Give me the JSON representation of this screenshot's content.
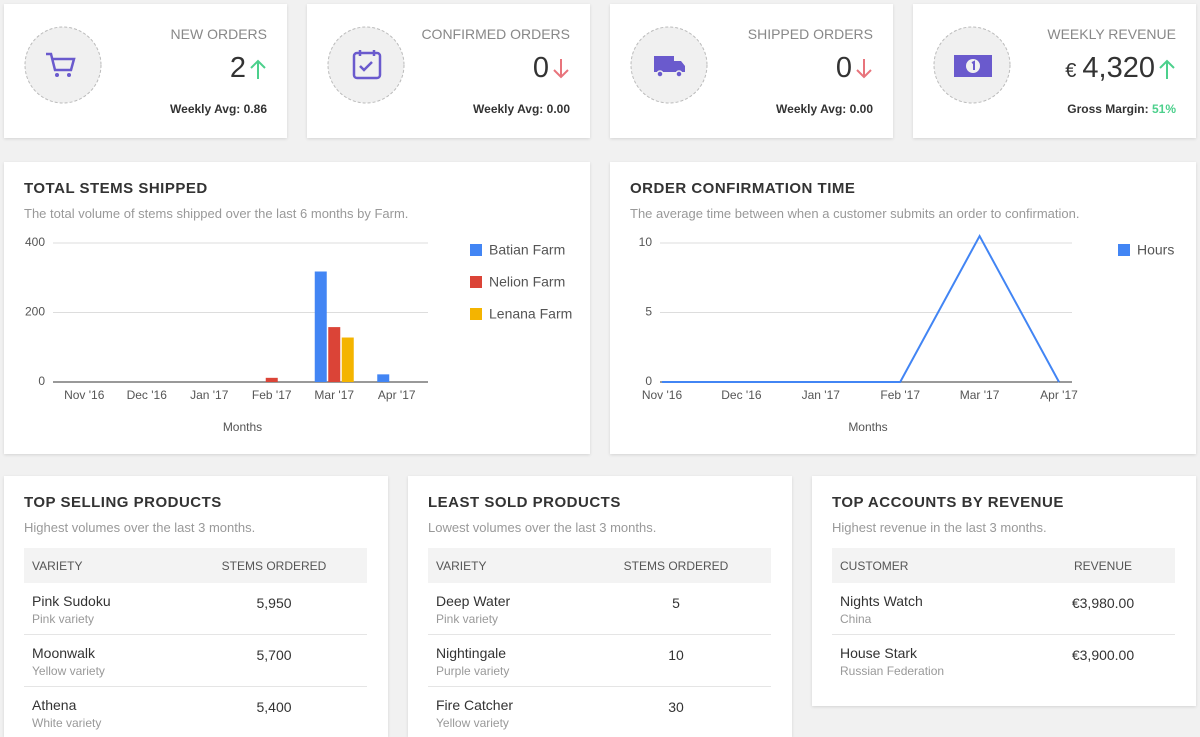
{
  "kpis": [
    {
      "label": "NEW ORDERS",
      "value": "2",
      "trend": "up",
      "footer_label": "Weekly Avg:",
      "footer_value": "0.86"
    },
    {
      "label": "CONFIRMED ORDERS",
      "value": "0",
      "trend": "down",
      "footer_label": "Weekly Avg:",
      "footer_value": "0.00"
    },
    {
      "label": "SHIPPED ORDERS",
      "value": "0",
      "trend": "down",
      "footer_label": "Weekly Avg:",
      "footer_value": "0.00"
    },
    {
      "label": "WEEKLY REVENUE",
      "currency": "€",
      "value": "4,320",
      "trend": "up",
      "footer_label": "Gross Margin:",
      "footer_value": "51%"
    }
  ],
  "chart_data": [
    {
      "type": "bar",
      "title": "TOTAL STEMS SHIPPED",
      "subtitle": "The total volume of stems shipped over the last 6 months by Farm.",
      "categories": [
        "Nov '16",
        "Dec '16",
        "Jan '17",
        "Feb '17",
        "Mar '17",
        "Apr '17"
      ],
      "series": [
        {
          "name": "Batian Farm",
          "color": "#4285f4",
          "values": [
            0,
            0,
            0,
            0,
            318,
            22
          ]
        },
        {
          "name": "Nelion Farm",
          "color": "#db4437",
          "values": [
            0,
            0,
            0,
            12,
            158,
            0
          ]
        },
        {
          "name": "Lenana Farm",
          "color": "#f4b400",
          "values": [
            0,
            0,
            0,
            0,
            128,
            0
          ]
        }
      ],
      "x_label": "Months",
      "ylim": [
        0,
        400
      ],
      "yticks": [
        0,
        200,
        400
      ],
      "grid": true,
      "legend": "right"
    },
    {
      "type": "line",
      "title": "ORDER CONFIRMATION TIME",
      "subtitle": "The average time between when a customer submits an order to confirmation.",
      "categories": [
        "Nov '16",
        "Dec '16",
        "Jan '17",
        "Feb '17",
        "Mar '17",
        "Apr '17"
      ],
      "series": [
        {
          "name": "Hours",
          "color": "#4285f4",
          "values": [
            0,
            0,
            0,
            0,
            10.5,
            0
          ]
        }
      ],
      "x_label": "Months",
      "ylim": [
        0,
        10
      ],
      "yticks": [
        0,
        5,
        10
      ],
      "grid": true,
      "legend": "right"
    }
  ],
  "tables": [
    {
      "title": "TOP SELLING PRODUCTS",
      "subtitle": "Highest volumes over the last 3 months.",
      "columns": [
        "VARIETY",
        "STEMS ORDERED"
      ],
      "rows": [
        {
          "name": "Pink Sudoku",
          "detail": "Pink variety",
          "value": "5,950"
        },
        {
          "name": "Moonwalk",
          "detail": "Yellow variety",
          "value": "5,700"
        },
        {
          "name": "Athena",
          "detail": "White variety",
          "value": "5,400"
        }
      ]
    },
    {
      "title": "LEAST SOLD PRODUCTS",
      "subtitle": "Lowest volumes over the last 3 months.",
      "columns": [
        "VARIETY",
        "STEMS ORDERED"
      ],
      "rows": [
        {
          "name": "Deep Water",
          "detail": "Pink variety",
          "value": "5"
        },
        {
          "name": "Nightingale",
          "detail": "Purple variety",
          "value": "10"
        },
        {
          "name": "Fire Catcher",
          "detail": "Yellow variety",
          "value": "30"
        }
      ]
    },
    {
      "title": "TOP ACCOUNTS BY REVENUE",
      "subtitle": "Highest revenue in the last 3 months.",
      "columns": [
        "CUSTOMER",
        "REVENUE"
      ],
      "rows": [
        {
          "name": "Nights Watch",
          "detail": "China",
          "value": "€3,980.00"
        },
        {
          "name": "House Stark",
          "detail": "Russian Federation",
          "value": "€3,900.00"
        }
      ]
    }
  ]
}
